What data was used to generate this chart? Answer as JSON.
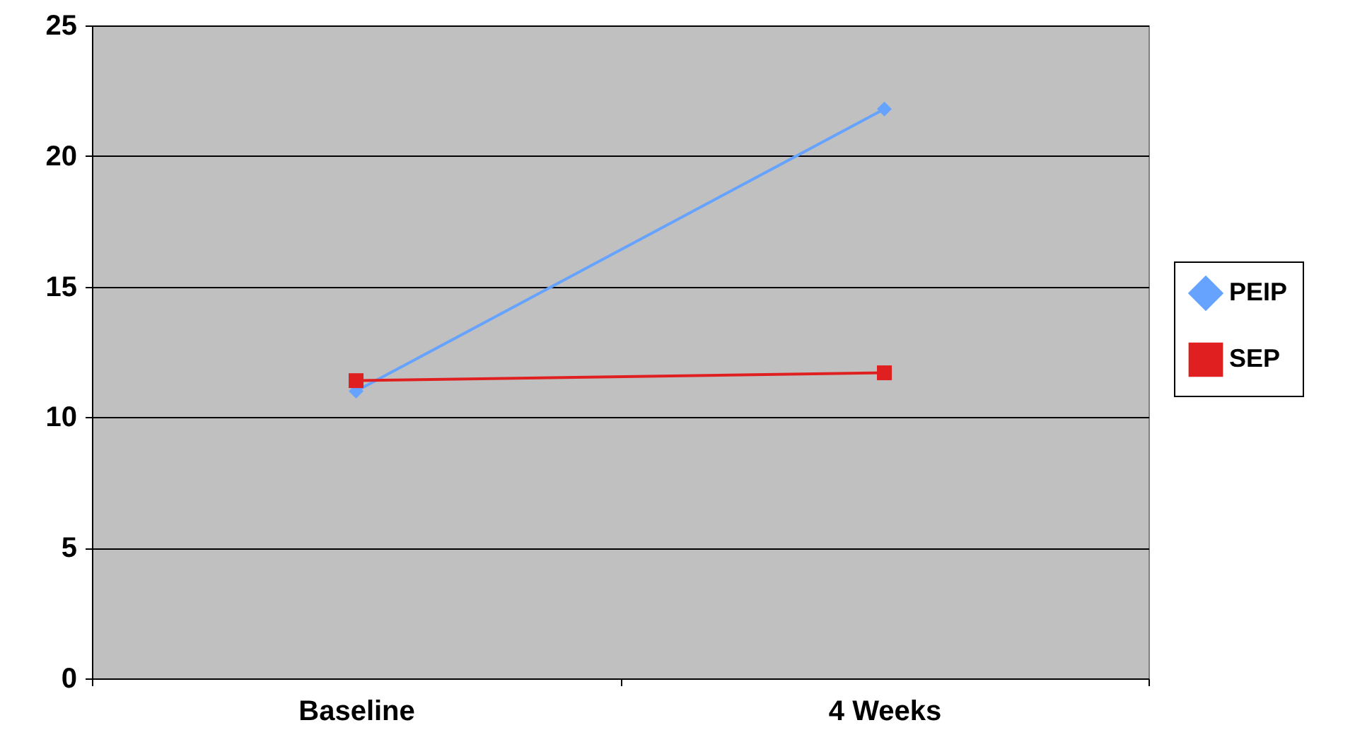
{
  "chart_data": {
    "type": "line",
    "categories": [
      "Baseline",
      "4 Weeks"
    ],
    "series": [
      {
        "name": "PEIP",
        "color": "#66a3ff",
        "marker": "diamond",
        "values": [
          11.0,
          21.8
        ]
      },
      {
        "name": "SEP",
        "color": "#e02020",
        "marker": "square",
        "values": [
          11.4,
          11.7
        ]
      }
    ],
    "ylim": [
      0,
      25
    ],
    "yticks": [
      0,
      5,
      10,
      15,
      20,
      25
    ],
    "grid": "y",
    "legend": "right"
  }
}
